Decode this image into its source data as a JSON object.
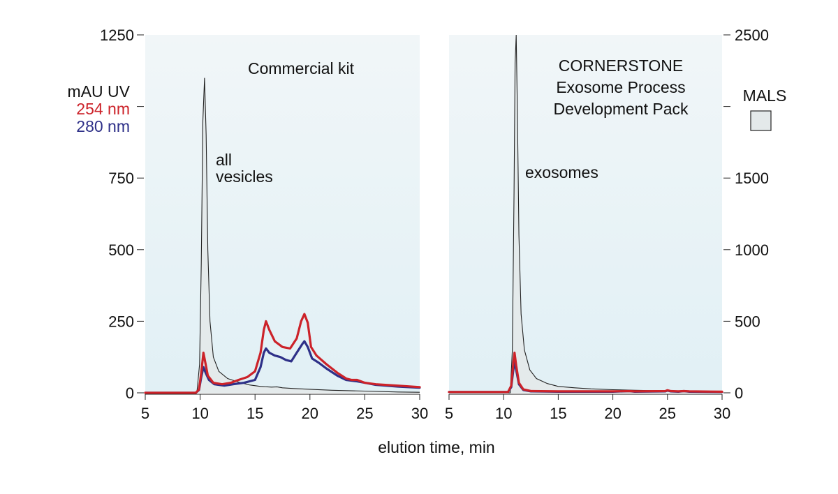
{
  "colors": {
    "uv254": "#cc2229",
    "uv280": "#2e3088",
    "mals_line": "#222222",
    "mals_fill": "#e4e9ea",
    "panel_bg_top": "#f1f6f8",
    "panel_bg_bottom": "#e1f0f5"
  },
  "shared": {
    "xlabel": "elution time, min",
    "y_left_unit": "mAU UV",
    "y_left_series_254": "254 nm",
    "y_left_series_280": "280 nm",
    "y_right_legend": "MALS"
  },
  "chart_data": [
    {
      "type": "line",
      "panel": "left",
      "title": "Commercial kit",
      "annotation": [
        "all",
        "vesicles"
      ],
      "xlim": [
        5,
        30
      ],
      "x_ticks": [
        5,
        10,
        15,
        20,
        25,
        30
      ],
      "ylim_uv": [
        0,
        1250
      ],
      "y_ticks_uv": [
        0,
        250,
        500,
        750,
        1250
      ],
      "y_tick_labeled_blank_uv": [
        1000
      ],
      "ylim_mals": [
        0,
        2500
      ],
      "series": [
        {
          "name": "254 nm",
          "axis": "uv",
          "points": [
            [
              5,
              0
            ],
            [
              9.6,
              0
            ],
            [
              9.9,
              12
            ],
            [
              10.1,
              70
            ],
            [
              10.3,
              140
            ],
            [
              10.45,
              110
            ],
            [
              10.7,
              60
            ],
            [
              11.2,
              35
            ],
            [
              12,
              30
            ],
            [
              12.8,
              35
            ],
            [
              13.5,
              45
            ],
            [
              14.3,
              55
            ],
            [
              15,
              75
            ],
            [
              15.5,
              140
            ],
            [
              15.8,
              220
            ],
            [
              16,
              250
            ],
            [
              16.3,
              220
            ],
            [
              16.8,
              180
            ],
            [
              17.5,
              160
            ],
            [
              18.2,
              155
            ],
            [
              18.8,
              190
            ],
            [
              19.2,
              250
            ],
            [
              19.5,
              275
            ],
            [
              19.8,
              245
            ],
            [
              20.1,
              160
            ],
            [
              20.6,
              130
            ],
            [
              21.5,
              100
            ],
            [
              22.5,
              70
            ],
            [
              23.3,
              50
            ],
            [
              23.8,
              45
            ],
            [
              24.3,
              45
            ],
            [
              25,
              35
            ],
            [
              26,
              30
            ],
            [
              28,
              25
            ],
            [
              30,
              20
            ]
          ]
        },
        {
          "name": "280 nm",
          "axis": "uv",
          "points": [
            [
              5,
              0
            ],
            [
              9.6,
              0
            ],
            [
              9.9,
              10
            ],
            [
              10.1,
              55
            ],
            [
              10.3,
              90
            ],
            [
              10.5,
              70
            ],
            [
              10.8,
              45
            ],
            [
              11.3,
              30
            ],
            [
              12.2,
              25
            ],
            [
              13,
              30
            ],
            [
              14,
              35
            ],
            [
              15,
              45
            ],
            [
              15.5,
              90
            ],
            [
              15.8,
              140
            ],
            [
              16,
              155
            ],
            [
              16.3,
              140
            ],
            [
              16.8,
              130
            ],
            [
              17.3,
              125
            ],
            [
              17.8,
              115
            ],
            [
              18.3,
              110
            ],
            [
              18.8,
              140
            ],
            [
              19.3,
              170
            ],
            [
              19.5,
              180
            ],
            [
              19.8,
              160
            ],
            [
              20.2,
              120
            ],
            [
              20.8,
              105
            ],
            [
              21.5,
              85
            ],
            [
              22.5,
              60
            ],
            [
              23.3,
              45
            ],
            [
              24.3,
              40
            ],
            [
              25,
              35
            ],
            [
              26,
              28
            ],
            [
              28,
              22
            ],
            [
              30,
              18
            ]
          ]
        },
        {
          "name": "MALS",
          "axis": "mals",
          "filled": true,
          "points": [
            [
              5,
              0
            ],
            [
              9.7,
              0
            ],
            [
              9.95,
              200
            ],
            [
              10.1,
              900
            ],
            [
              10.25,
              1900
            ],
            [
              10.4,
              2200
            ],
            [
              10.55,
              1800
            ],
            [
              10.7,
              1000
            ],
            [
              10.9,
              500
            ],
            [
              11.2,
              250
            ],
            [
              11.7,
              150
            ],
            [
              12.5,
              100
            ],
            [
              13.5,
              75
            ],
            [
              14.5,
              55
            ],
            [
              15.5,
              45
            ],
            [
              16.5,
              40
            ],
            [
              17,
              42
            ],
            [
              17.5,
              35
            ],
            [
              18.5,
              30
            ],
            [
              20,
              25
            ],
            [
              22,
              18
            ],
            [
              25,
              12
            ],
            [
              28,
              6
            ],
            [
              30,
              4
            ]
          ]
        }
      ]
    },
    {
      "type": "line",
      "panel": "right",
      "title": [
        "CORNERSTONE",
        "Exosome Process",
        "Development Pack"
      ],
      "annotation": [
        "exosomes"
      ],
      "xlim": [
        5,
        30
      ],
      "x_ticks": [
        5,
        10,
        15,
        20,
        25,
        30
      ],
      "ylim_mals": [
        0,
        2500
      ],
      "y_ticks_mals": [
        0,
        500,
        1000,
        1500,
        2500
      ],
      "y_tick_labeled_blank_mals": [
        2000
      ],
      "ylim_uv": [
        0,
        1250
      ],
      "series": [
        {
          "name": "254 nm",
          "axis": "uv",
          "points": [
            [
              5,
              3
            ],
            [
              10.4,
              3
            ],
            [
              10.7,
              25
            ],
            [
              10.9,
              110
            ],
            [
              11.0,
              140
            ],
            [
              11.15,
              95
            ],
            [
              11.4,
              35
            ],
            [
              11.8,
              12
            ],
            [
              12.5,
              6
            ],
            [
              15,
              5
            ],
            [
              20,
              5
            ],
            [
              21.5,
              6
            ],
            [
              22,
              5
            ],
            [
              24.8,
              6
            ],
            [
              25,
              9
            ],
            [
              25.3,
              6
            ],
            [
              26,
              5
            ],
            [
              26.5,
              6
            ],
            [
              27,
              5
            ],
            [
              30,
              4
            ]
          ]
        },
        {
          "name": "280 nm",
          "axis": "uv",
          "points": [
            [
              5,
              3
            ],
            [
              10.4,
              3
            ],
            [
              10.7,
              20
            ],
            [
              10.9,
              85
            ],
            [
              11.0,
              105
            ],
            [
              11.15,
              80
            ],
            [
              11.4,
              30
            ],
            [
              11.8,
              10
            ],
            [
              12.5,
              5
            ],
            [
              15,
              4
            ],
            [
              20,
              4
            ],
            [
              21.5,
              6
            ],
            [
              22,
              4
            ],
            [
              24.8,
              5
            ],
            [
              25,
              8
            ],
            [
              25.3,
              5
            ],
            [
              26,
              4
            ],
            [
              26.5,
              6
            ],
            [
              27,
              4
            ],
            [
              30,
              3
            ]
          ]
        },
        {
          "name": "MALS",
          "axis": "mals",
          "filled": true,
          "points": [
            [
              5,
              0
            ],
            [
              10.6,
              0
            ],
            [
              10.8,
              300
            ],
            [
              10.95,
              1400
            ],
            [
              11.05,
              2300
            ],
            [
              11.15,
              2500
            ],
            [
              11.25,
              2000
            ],
            [
              11.4,
              1100
            ],
            [
              11.6,
              550
            ],
            [
              11.9,
              300
            ],
            [
              12.4,
              160
            ],
            [
              13,
              100
            ],
            [
              14,
              65
            ],
            [
              15,
              45
            ],
            [
              16.5,
              35
            ],
            [
              18,
              28
            ],
            [
              20,
              22
            ],
            [
              22,
              18
            ],
            [
              24,
              15
            ],
            [
              27,
              12
            ],
            [
              30,
              10
            ]
          ]
        }
      ]
    }
  ]
}
